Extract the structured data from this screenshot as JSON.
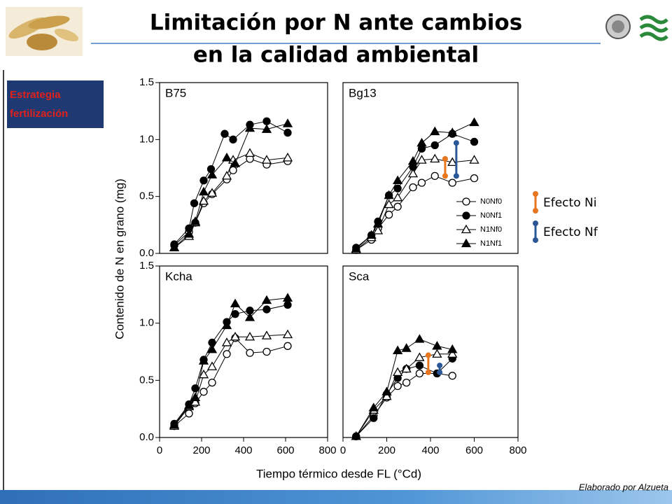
{
  "header": {
    "title_lines": [
      "Limitación por N ante cambios",
      "en la calidad ambiental"
    ]
  },
  "side_box": {
    "lines": [
      "Estrategia",
      "fertilización"
    ]
  },
  "axes": {
    "y_label": "Contenido de N en grano (mg)",
    "x_label": "Tiempo térmico desde FL (°Cd)"
  },
  "series_styles": [
    {
      "name": "N0Nf0",
      "marker": "circle",
      "filled": false
    },
    {
      "name": "N0Nf1",
      "marker": "circle",
      "filled": true
    },
    {
      "name": "N1Nf0",
      "marker": "triangle",
      "filled": false
    },
    {
      "name": "N1Nf1",
      "marker": "triangle",
      "filled": true
    }
  ],
  "effect_legend": [
    {
      "label": "Efecto Ni",
      "color": "#e8761e"
    },
    {
      "label": "Efecto Nf",
      "color": "#2b5797"
    }
  ],
  "footer": {
    "credit": "Elaborado por Alzueta"
  },
  "chart_data": [
    {
      "type": "scatter",
      "title": "B75",
      "xlim": [
        0,
        800
      ],
      "ylim": [
        0,
        1.5
      ],
      "yticks": [
        {
          "value": 0,
          "label": "0.0"
        },
        0.5,
        {
          "value": 1,
          "label": "1.0"
        },
        1.5
      ],
      "series": [
        {
          "x": [
            70,
            140,
            170,
            210,
            250,
            320,
            350,
            430,
            510,
            610
          ],
          "values": [
            0.07,
            0.19,
            0.27,
            0.44,
            0.52,
            0.65,
            0.73,
            0.83,
            0.78,
            0.81
          ]
        },
        {
          "x": [
            70,
            140,
            165,
            210,
            245,
            310,
            350,
            430,
            510,
            610
          ],
          "values": [
            0.08,
            0.22,
            0.44,
            0.64,
            0.74,
            1.05,
            1.0,
            1.13,
            1.16,
            1.06
          ]
        },
        {
          "x": [
            70,
            140,
            170,
            210,
            250,
            320,
            350,
            430,
            510,
            610
          ],
          "values": [
            0.05,
            0.15,
            0.27,
            0.46,
            0.53,
            0.68,
            0.82,
            0.88,
            0.82,
            0.84
          ]
        },
        {
          "x": [
            70,
            140,
            170,
            210,
            250,
            320,
            360,
            430,
            510,
            610
          ],
          "values": [
            0.05,
            0.17,
            0.28,
            0.54,
            0.69,
            0.84,
            0.79,
            1.1,
            1.09,
            1.14
          ]
        }
      ]
    },
    {
      "type": "scatter",
      "title": "Bg13",
      "xlim": [
        0,
        800
      ],
      "ylim": [
        0,
        1.5
      ],
      "legend": "lower right",
      "series": [
        {
          "x": [
            60,
            130,
            160,
            210,
            250,
            320,
            360,
            420,
            500,
            600
          ],
          "values": [
            0.03,
            0.12,
            0.22,
            0.34,
            0.41,
            0.58,
            0.62,
            0.68,
            0.62,
            0.66
          ]
        },
        {
          "x": [
            60,
            130,
            160,
            210,
            250,
            320,
            360,
            420,
            500,
            600
          ],
          "values": [
            0.05,
            0.16,
            0.28,
            0.51,
            0.57,
            0.76,
            0.92,
            0.95,
            1.05,
            0.98
          ]
        },
        {
          "x": [
            60,
            130,
            160,
            210,
            250,
            320,
            360,
            420,
            500,
            600
          ],
          "values": [
            0.03,
            0.14,
            0.2,
            0.43,
            0.49,
            0.7,
            0.82,
            0.83,
            0.8,
            0.82
          ]
        },
        {
          "x": [
            60,
            130,
            160,
            210,
            250,
            320,
            360,
            420,
            500,
            600
          ],
          "values": [
            0.04,
            0.16,
            0.26,
            0.51,
            0.64,
            0.81,
            0.97,
            1.07,
            1.06,
            1.15
          ]
        }
      ],
      "effects": [
        {
          "color": "#e8761e",
          "x": 467,
          "y": [
            0.68,
            0.83
          ]
        },
        {
          "color": "#2b5797",
          "x": 518,
          "y": [
            0.68,
            0.97
          ]
        }
      ]
    },
    {
      "type": "scatter",
      "title": "Kcha",
      "xlim": [
        0,
        800
      ],
      "ylim": [
        0,
        1.5
      ],
      "yticks": [
        {
          "value": 0,
          "label": "0.0"
        },
        0.5,
        {
          "value": 1,
          "label": "1.0"
        },
        1.5
      ],
      "xticks": [
        0,
        200,
        400,
        600,
        800
      ],
      "series": [
        {
          "x": [
            70,
            140,
            170,
            210,
            250,
            320,
            360,
            430,
            510,
            610
          ],
          "values": [
            0.1,
            0.21,
            0.3,
            0.4,
            0.48,
            0.73,
            0.87,
            0.74,
            0.75,
            0.8
          ]
        },
        {
          "x": [
            70,
            140,
            170,
            210,
            250,
            320,
            360,
            430,
            510,
            610
          ],
          "values": [
            0.12,
            0.29,
            0.43,
            0.68,
            0.83,
            1.01,
            1.08,
            1.11,
            1.12,
            1.16
          ]
        },
        {
          "x": [
            70,
            140,
            170,
            210,
            250,
            320,
            360,
            430,
            510,
            610
          ],
          "values": [
            0.1,
            0.27,
            0.31,
            0.55,
            0.62,
            0.83,
            0.88,
            0.88,
            0.89,
            0.9
          ]
        },
        {
          "x": [
            70,
            140,
            170,
            210,
            250,
            320,
            360,
            430,
            510,
            610
          ],
          "values": [
            0.11,
            0.28,
            0.35,
            0.67,
            0.77,
            0.98,
            1.17,
            1.05,
            1.2,
            1.22
          ]
        }
      ]
    },
    {
      "type": "scatter",
      "title": "Sca",
      "xlim": [
        0,
        800
      ],
      "ylim": [
        0,
        1.5
      ],
      "xticks": [
        0,
        200,
        400,
        600,
        800
      ],
      "series": [
        {
          "x": [
            60,
            140,
            200,
            250,
            290,
            350,
            430,
            500
          ],
          "values": [
            0.01,
            0.19,
            0.35,
            0.45,
            0.48,
            0.56,
            0.56,
            0.54
          ]
        },
        {
          "x": [
            60,
            140,
            200,
            250,
            290,
            350,
            430,
            500
          ],
          "values": [
            0.01,
            0.17,
            0.38,
            0.52,
            0.6,
            0.63,
            0.56,
            0.69
          ]
        },
        {
          "x": [
            60,
            140,
            200,
            250,
            290,
            350,
            430,
            500
          ],
          "values": [
            0.01,
            0.24,
            0.36,
            0.57,
            0.6,
            0.7,
            0.73,
            0.73
          ]
        },
        {
          "x": [
            60,
            140,
            200,
            250,
            290,
            350,
            430,
            500
          ],
          "values": [
            0.01,
            0.26,
            0.4,
            0.76,
            0.78,
            0.86,
            0.8,
            0.77
          ]
        }
      ],
      "effects": [
        {
          "color": "#e8761e",
          "x": 390,
          "y": [
            0.57,
            0.72
          ]
        },
        {
          "color": "#2b5797",
          "x": 442,
          "y": [
            0.57,
            0.63
          ]
        }
      ]
    }
  ]
}
